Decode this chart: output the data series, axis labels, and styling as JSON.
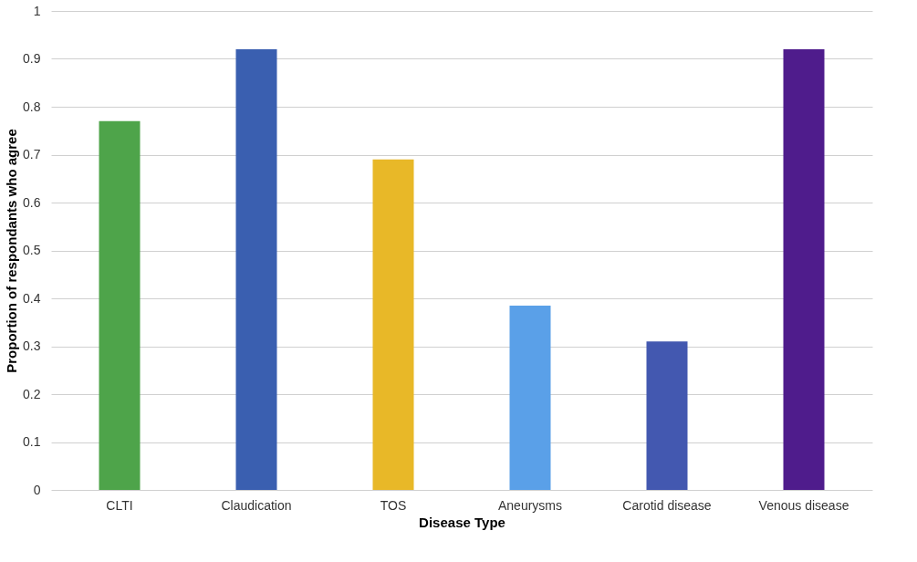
{
  "chart_data": {
    "type": "bar",
    "xlabel": "Disease Type",
    "ylabel": "Proportion of respondants who agree",
    "categories": [
      "CLTI",
      "Claudication",
      "TOS",
      "Aneurysms",
      "Carotid disease",
      "Venous disease"
    ],
    "values": [
      0.77,
      0.92,
      0.69,
      0.385,
      0.31,
      0.92
    ],
    "colors": [
      "#4ea44a",
      "#3a5fb0",
      "#e8b828",
      "#5aa0e8",
      "#4358b0",
      "#4f1c8c"
    ],
    "ylim": [
      0,
      1
    ],
    "yticks": [
      0,
      0.1,
      0.2,
      0.3,
      0.4,
      0.5,
      0.6,
      0.7,
      0.8,
      0.9,
      1
    ],
    "grid": "y"
  }
}
